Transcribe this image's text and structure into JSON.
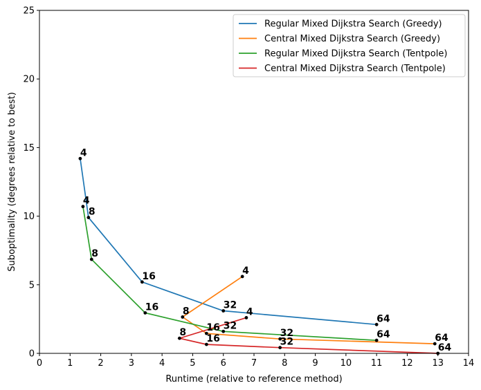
{
  "chart_data": {
    "type": "line",
    "xlabel": "Runtime (relative to reference method)",
    "ylabel": "Suboptimality (degrees relative to best)",
    "xlim": [
      0,
      14
    ],
    "ylim": [
      0,
      25
    ],
    "xticks": [
      "0",
      "1",
      "2",
      "3",
      "4",
      "5",
      "6",
      "7",
      "8",
      "9",
      "10",
      "11",
      "12",
      "13",
      "14"
    ],
    "yticks": [
      "0",
      "5",
      "10",
      "15",
      "20",
      "25"
    ],
    "legend_position": "top-right",
    "series": [
      {
        "name": "Regular Mixed Dijkstra Search (Greedy)",
        "color": "#1f77b4",
        "points": [
          {
            "x": 1.33,
            "y": 14.2,
            "label": "4"
          },
          {
            "x": 1.6,
            "y": 9.9,
            "label": "8"
          },
          {
            "x": 3.35,
            "y": 5.2,
            "label": "16"
          },
          {
            "x": 6.0,
            "y": 3.1,
            "label": "32"
          },
          {
            "x": 11.0,
            "y": 2.1,
            "label": "64"
          }
        ]
      },
      {
        "name": "Central Mixed Dijkstra Search (Greedy)",
        "color": "#ff7f0e",
        "points": [
          {
            "x": 6.62,
            "y": 5.6,
            "label": "4"
          },
          {
            "x": 4.67,
            "y": 2.65,
            "label": "8"
          },
          {
            "x": 5.45,
            "y": 1.45,
            "label": "16"
          },
          {
            "x": 7.85,
            "y": 1.05,
            "label": "32"
          },
          {
            "x": 12.9,
            "y": 0.7,
            "label": "64"
          }
        ]
      },
      {
        "name": "Regular Mixed Dijkstra Search (Tentpole)",
        "color": "#2ca02c",
        "points": [
          {
            "x": 1.42,
            "y": 10.7,
            "label": "4"
          },
          {
            "x": 1.7,
            "y": 6.85,
            "label": "8"
          },
          {
            "x": 3.45,
            "y": 2.95,
            "label": "16"
          },
          {
            "x": 6.0,
            "y": 1.6,
            "label": "32"
          },
          {
            "x": 11.0,
            "y": 0.95,
            "label": "64"
          }
        ]
      },
      {
        "name": "Central Mixed Dijkstra Search (Tentpole)",
        "color": "#d62728",
        "points": [
          {
            "x": 6.75,
            "y": 2.6,
            "label": "4"
          },
          {
            "x": 4.57,
            "y": 1.1,
            "label": "8"
          },
          {
            "x": 5.45,
            "y": 0.65,
            "label": "16"
          },
          {
            "x": 7.85,
            "y": 0.42,
            "label": "32"
          },
          {
            "x": 13.0,
            "y": 0.0,
            "label": "64"
          }
        ]
      }
    ]
  }
}
